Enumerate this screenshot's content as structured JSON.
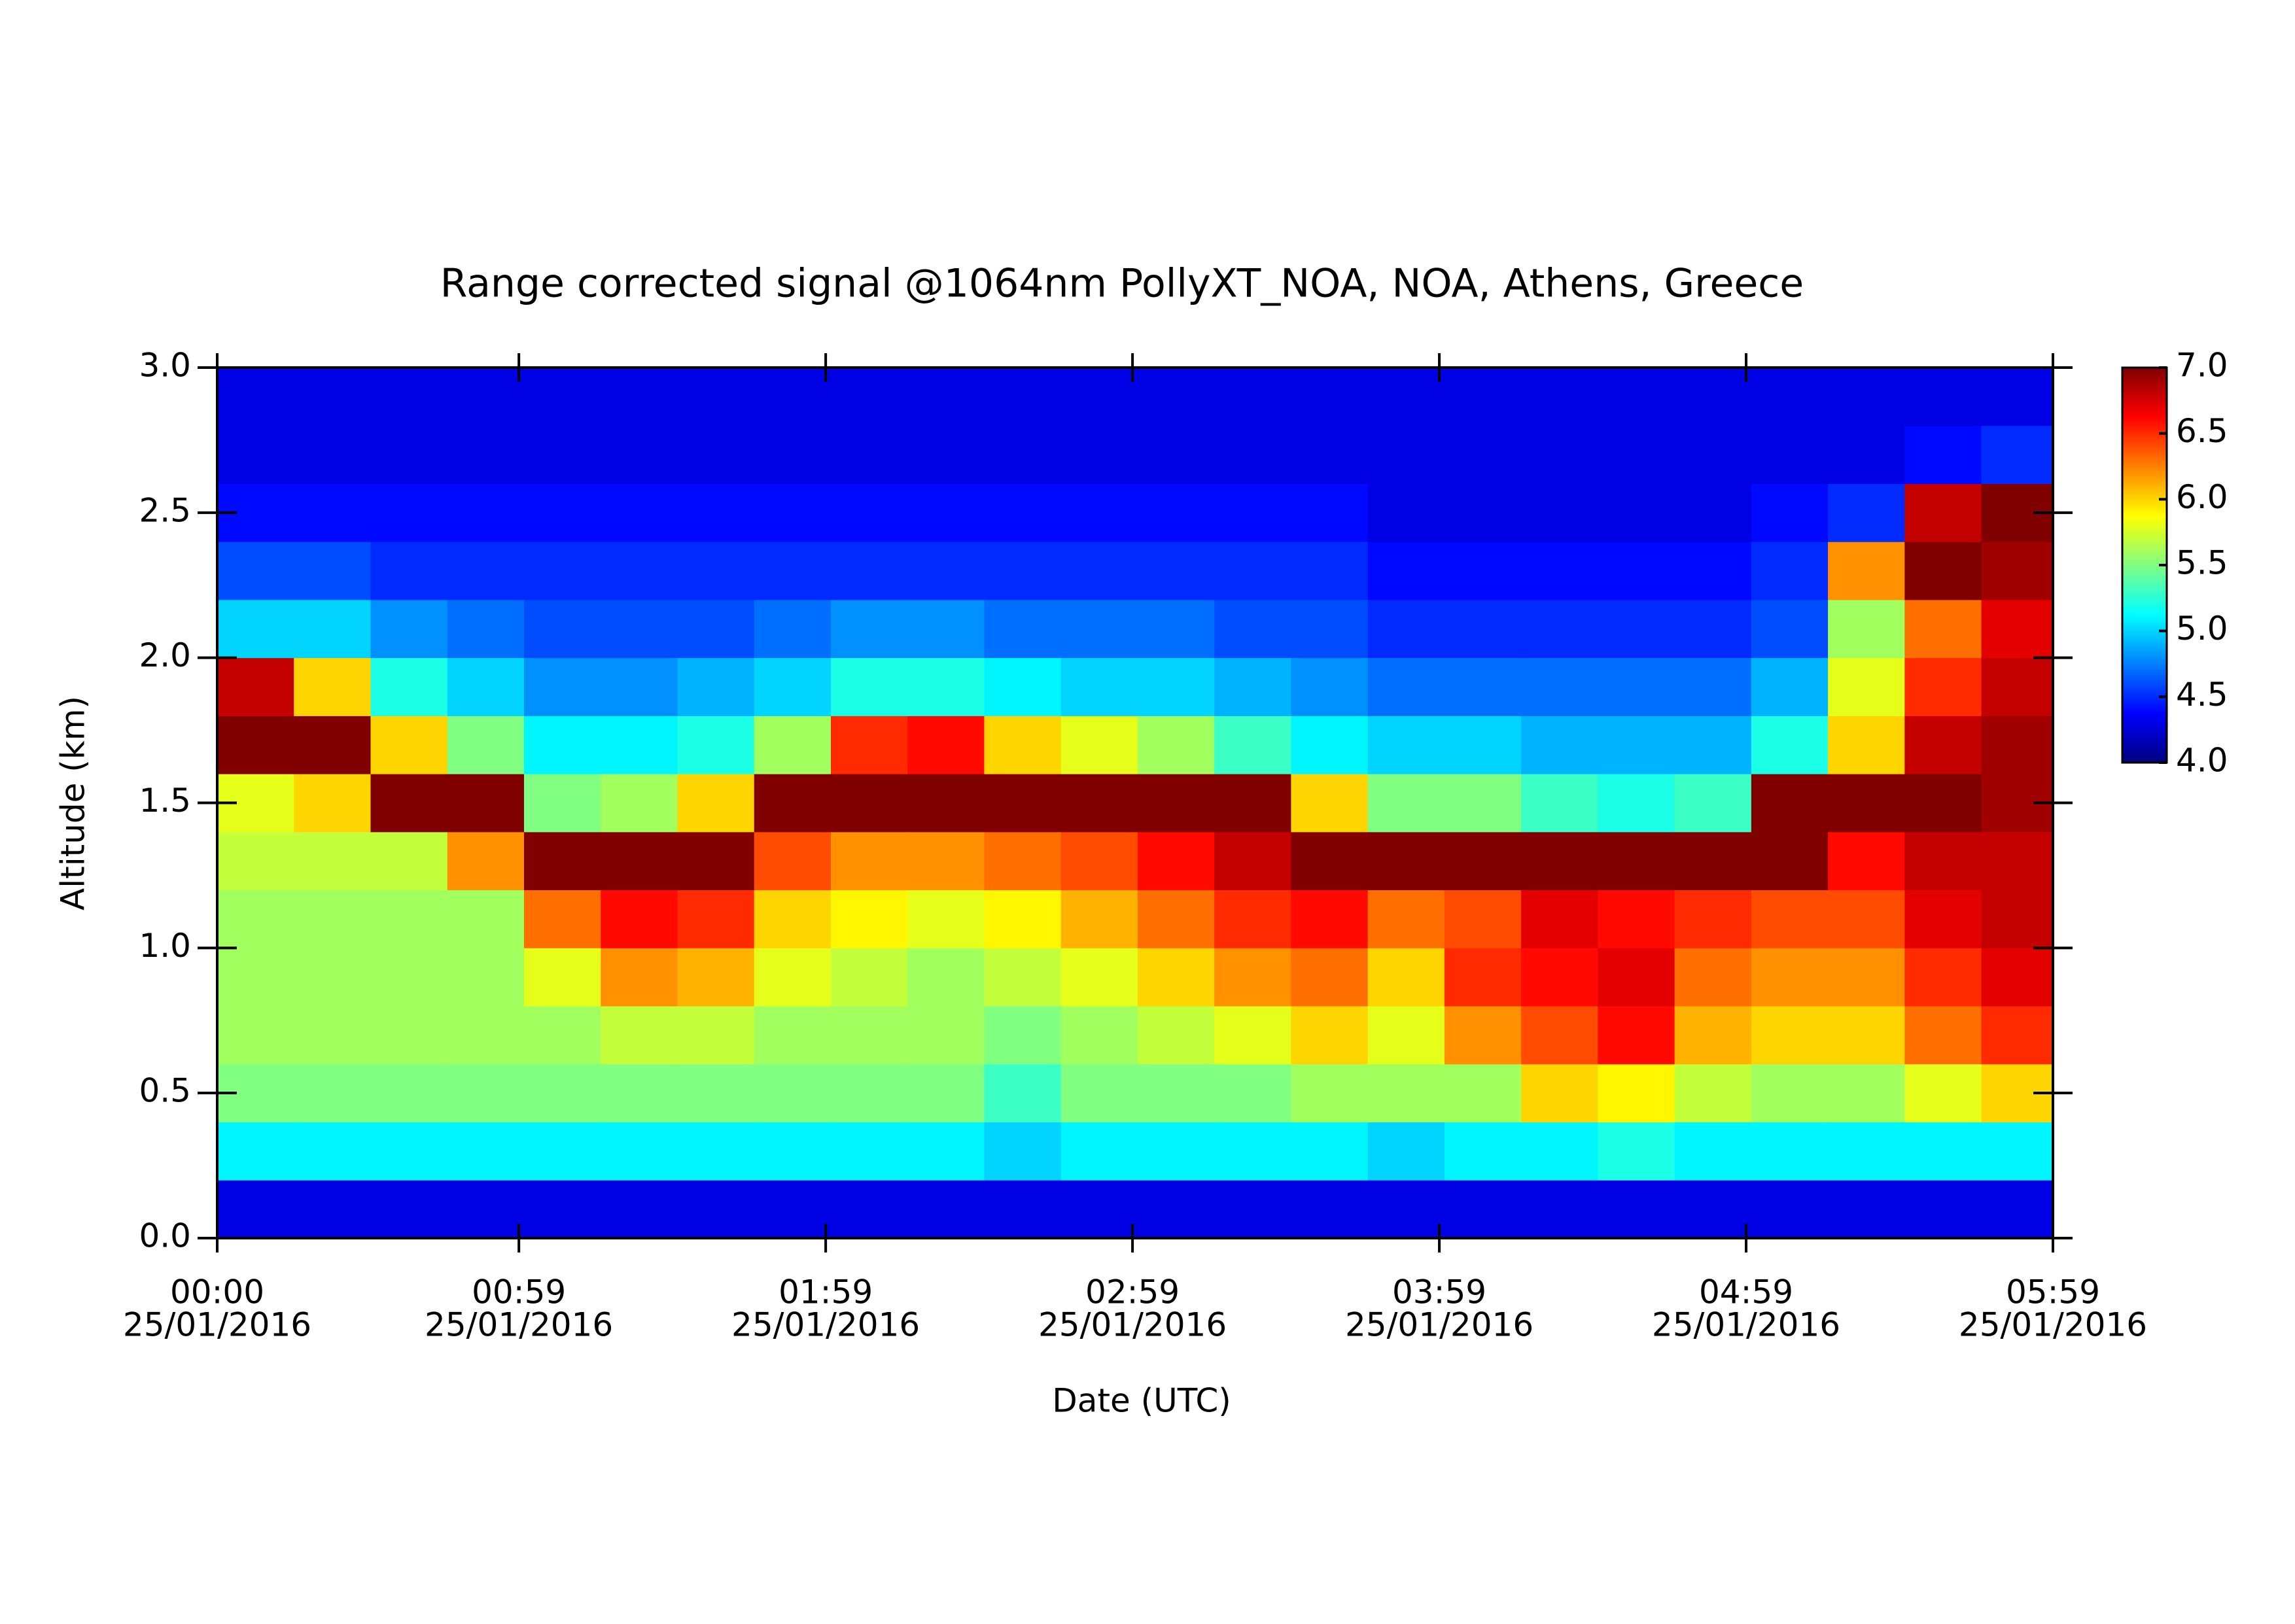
{
  "chart_data": {
    "type": "heatmap",
    "title": "Range corrected signal @1064nm  PollyXT_NOA, NOA, Athens, Greece",
    "x_label": "Date (UTC)",
    "y_label": "Altitude (km)",
    "colormap": "jet",
    "xlim": [
      0,
      359
    ],
    "ylim": [
      0,
      3
    ],
    "zlim": [
      4,
      7
    ],
    "xticks": [
      {
        "value": 0,
        "label": [
          "00:00",
          "25/01/2016"
        ]
      },
      {
        "value": 59,
        "label": [
          "00:59",
          "25/01/2016"
        ]
      },
      {
        "value": 119,
        "label": [
          "01:59",
          "25/01/2016"
        ]
      },
      {
        "value": 179,
        "label": [
          "02:59",
          "25/01/2016"
        ]
      },
      {
        "value": 239,
        "label": [
          "03:59",
          "25/01/2016"
        ]
      },
      {
        "value": 299,
        "label": [
          "04:59",
          "25/01/2016"
        ]
      },
      {
        "value": 359,
        "label": [
          "05:59",
          "25/01/2016"
        ]
      }
    ],
    "yticks": [
      {
        "value": 0,
        "label": "0.0"
      },
      {
        "value": 0.5,
        "label": "0.5"
      },
      {
        "value": 1,
        "label": "1.0"
      },
      {
        "value": 1.5,
        "label": "1.5"
      },
      {
        "value": 2,
        "label": "2.0"
      },
      {
        "value": 2.5,
        "label": "2.5"
      },
      {
        "value": 3,
        "label": "3.0"
      }
    ],
    "zticks": [
      {
        "value": 4,
        "label": "4.0"
      },
      {
        "value": 4.5,
        "label": "4.5"
      },
      {
        "value": 5,
        "label": "5.0"
      },
      {
        "value": 5.5,
        "label": "5.5"
      },
      {
        "value": 6,
        "label": "6.0"
      },
      {
        "value": 6.5,
        "label": "6.5"
      },
      {
        "value": 7,
        "label": "7.0"
      }
    ],
    "xbins": [
      0,
      15,
      30,
      45,
      60,
      75,
      90,
      105,
      120,
      135,
      150,
      165,
      180,
      195,
      210,
      225,
      240,
      255,
      270,
      285,
      300,
      315,
      330,
      345,
      359
    ],
    "ybins": [
      0,
      0.2,
      0.4,
      0.6,
      0.8,
      1,
      1.2,
      1.4,
      1.6,
      1.8,
      2,
      2.2,
      2.4,
      2.6,
      2.8,
      3
    ],
    "z": [
      [
        4.3,
        5.1,
        5.5,
        5.6,
        5.6,
        5.6,
        5.7,
        5.8,
        7.0,
        6.8,
        5.0,
        4.6,
        4.4,
        4.3,
        4.3
      ],
      [
        4.3,
        5.1,
        5.5,
        5.6,
        5.6,
        5.6,
        5.7,
        6.0,
        7.0,
        6.0,
        5.0,
        4.6,
        4.4,
        4.3,
        4.3
      ],
      [
        4.3,
        5.1,
        5.5,
        5.6,
        5.6,
        5.6,
        5.7,
        7.0,
        6.0,
        5.2,
        4.8,
        4.5,
        4.4,
        4.3,
        4.3
      ],
      [
        4.3,
        5.1,
        5.5,
        5.6,
        5.6,
        5.6,
        6.2,
        7.0,
        5.5,
        5.0,
        4.7,
        4.5,
        4.4,
        4.3,
        4.3
      ],
      [
        4.3,
        5.1,
        5.5,
        5.6,
        5.8,
        6.3,
        7.0,
        5.5,
        5.1,
        4.8,
        4.6,
        4.5,
        4.4,
        4.3,
        4.3
      ],
      [
        4.3,
        5.1,
        5.5,
        5.7,
        6.2,
        6.6,
        7.0,
        5.6,
        5.1,
        4.8,
        4.6,
        4.5,
        4.4,
        4.3,
        4.3
      ],
      [
        4.3,
        5.1,
        5.5,
        5.7,
        6.1,
        6.5,
        7.0,
        6.0,
        5.2,
        4.9,
        4.6,
        4.5,
        4.4,
        4.3,
        4.3
      ],
      [
        4.3,
        5.1,
        5.5,
        5.6,
        5.8,
        6.0,
        6.4,
        7.0,
        5.6,
        5.0,
        4.7,
        4.5,
        4.4,
        4.3,
        4.3
      ],
      [
        4.3,
        5.1,
        5.5,
        5.6,
        5.7,
        5.9,
        6.2,
        7.0,
        6.5,
        5.2,
        4.8,
        4.5,
        4.4,
        4.3,
        4.3
      ],
      [
        4.3,
        5.1,
        5.5,
        5.6,
        5.6,
        5.8,
        6.2,
        7.0,
        6.6,
        5.2,
        4.8,
        4.5,
        4.4,
        4.3,
        4.3
      ],
      [
        4.3,
        5.0,
        5.3,
        5.5,
        5.7,
        5.9,
        6.3,
        7.0,
        6.0,
        5.1,
        4.7,
        4.5,
        4.4,
        4.3,
        4.3
      ],
      [
        4.3,
        5.1,
        5.5,
        5.6,
        5.8,
        6.1,
        6.4,
        7.0,
        5.8,
        5.0,
        4.7,
        4.5,
        4.4,
        4.3,
        4.3
      ],
      [
        4.3,
        5.1,
        5.5,
        5.7,
        6.0,
        6.3,
        6.6,
        7.0,
        5.6,
        5.0,
        4.7,
        4.5,
        4.4,
        4.3,
        4.3
      ],
      [
        4.3,
        5.1,
        5.5,
        5.8,
        6.2,
        6.5,
        6.8,
        7.0,
        5.3,
        4.9,
        4.6,
        4.5,
        4.4,
        4.3,
        4.3
      ],
      [
        4.3,
        5.1,
        5.6,
        6.0,
        6.3,
        6.6,
        7.0,
        6.0,
        5.1,
        4.8,
        4.6,
        4.5,
        4.4,
        4.3,
        4.3
      ],
      [
        4.3,
        5.0,
        5.6,
        5.8,
        6.0,
        6.3,
        7.0,
        5.5,
        5.0,
        4.7,
        4.5,
        4.4,
        4.3,
        4.3,
        4.3
      ],
      [
        4.3,
        5.1,
        5.6,
        6.2,
        6.5,
        6.4,
        7.0,
        5.5,
        5.0,
        4.7,
        4.5,
        4.4,
        4.3,
        4.3,
        4.3
      ],
      [
        4.3,
        5.1,
        6.0,
        6.4,
        6.6,
        6.7,
        7.0,
        5.3,
        4.9,
        4.7,
        4.5,
        4.4,
        4.3,
        4.3,
        4.3
      ],
      [
        4.3,
        5.2,
        5.9,
        6.6,
        6.7,
        6.6,
        7.0,
        5.2,
        4.9,
        4.7,
        4.5,
        4.4,
        4.3,
        4.3,
        4.3
      ],
      [
        4.3,
        5.1,
        5.7,
        6.1,
        6.3,
        6.5,
        7.0,
        5.3,
        4.9,
        4.7,
        4.5,
        4.4,
        4.3,
        4.3,
        4.3
      ],
      [
        4.3,
        5.1,
        5.6,
        6.0,
        6.2,
        6.4,
        7.0,
        7.0,
        5.2,
        4.9,
        4.6,
        4.5,
        4.4,
        4.3,
        4.3
      ],
      [
        4.3,
        5.1,
        5.6,
        6.0,
        6.2,
        6.4,
        6.6,
        7.0,
        6.0,
        5.8,
        5.6,
        6.2,
        4.5,
        4.3,
        4.3
      ],
      [
        4.3,
        5.1,
        5.8,
        6.3,
        6.5,
        6.7,
        6.8,
        7.0,
        6.8,
        6.5,
        6.3,
        7.0,
        6.8,
        4.4,
        4.3
      ],
      [
        4.3,
        5.1,
        6.0,
        6.5,
        6.7,
        6.8,
        6.8,
        6.9,
        6.9,
        6.8,
        6.7,
        6.9,
        7.0,
        4.5,
        4.3
      ]
    ]
  }
}
